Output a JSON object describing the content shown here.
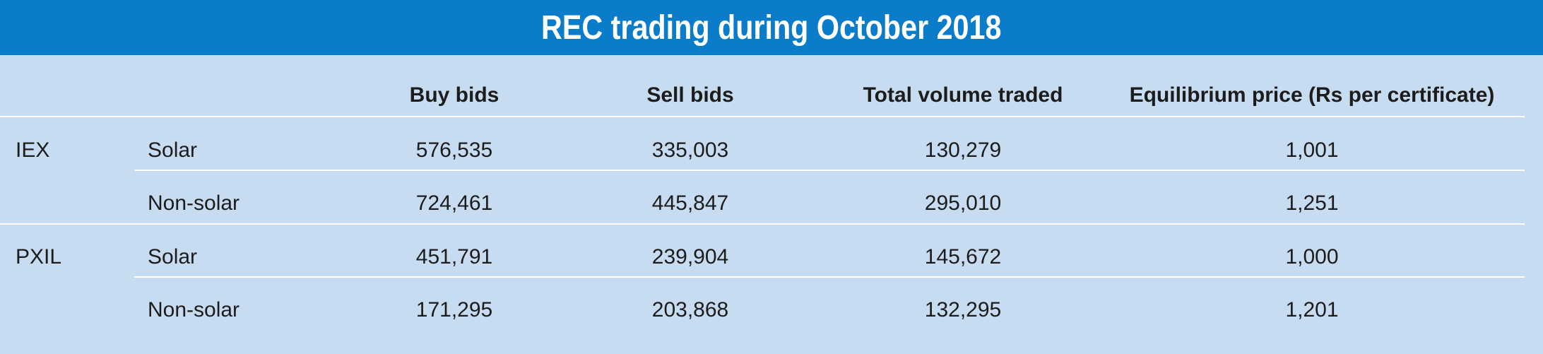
{
  "title": "REC trading during October 2018",
  "chart_data": {
    "type": "table",
    "title": "REC trading during October 2018",
    "columns": [
      "",
      "",
      "Buy bids",
      "Sell bids",
      "Total volume traded",
      "Equilibrium price (Rs per certificate)"
    ],
    "rows": [
      {
        "exchange": "IEX",
        "segment": "Solar",
        "buy_bids": "576,535",
        "sell_bids": "335,003",
        "total_volume": "130,279",
        "price": "1,001"
      },
      {
        "exchange": "",
        "segment": "Non-solar",
        "buy_bids": "724,461",
        "sell_bids": "445,847",
        "total_volume": "295,010",
        "price": "1,251"
      },
      {
        "exchange": "PXIL",
        "segment": "Solar",
        "buy_bids": "451,791",
        "sell_bids": "239,904",
        "total_volume": "145,672",
        "price": "1,000"
      },
      {
        "exchange": "",
        "segment": "Non-solar",
        "buy_bids": "171,295",
        "sell_bids": "203,868",
        "total_volume": "132,295",
        "price": "1,201"
      }
    ]
  },
  "colors": {
    "title_bar": "#0a7cc9",
    "background": "#c7dcf0",
    "rule": "#ffffff"
  }
}
